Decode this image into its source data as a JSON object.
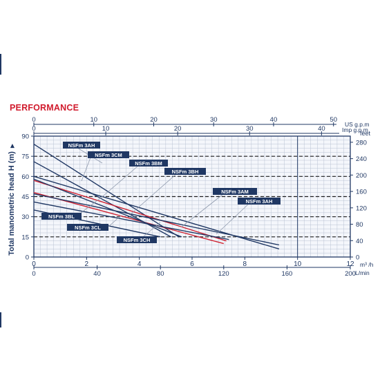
{
  "title": "PERFORMANCE",
  "colors": {
    "navy": "#1f3763",
    "red": "#cf2433",
    "label_bg": "#1f3763",
    "label_text": "#ffffff",
    "grid": "#b9c2d3",
    "plot_bg": "#f4f6fb"
  },
  "chart_data": {
    "type": "line",
    "title": "PERFORMANCE",
    "ylabel": "Total manometric head H (m)",
    "ylabel_arrow": "▲",
    "grid": true,
    "axes": {
      "x_bottom": {
        "label": "m³ /h",
        "range": [
          0,
          12
        ],
        "ticks": [
          "0",
          "2",
          "4",
          "6",
          "8",
          "10",
          "12"
        ]
      },
      "x_lpm": {
        "label": "L/min",
        "range": [
          0,
          200
        ],
        "ticks": [
          "0",
          "40",
          "80",
          "120",
          "160",
          "200"
        ]
      },
      "x_imp": {
        "label": "Imp g.p.m",
        "range": [
          0,
          44
        ],
        "ticks": [
          "0",
          "10",
          "20",
          "30",
          "40"
        ]
      },
      "x_us": {
        "label": "US g.p.m",
        "range": [
          0,
          52.8
        ],
        "ticks": [
          "0",
          "10",
          "20",
          "30",
          "40",
          "50"
        ]
      },
      "y_left": {
        "label": "Total manometric head H (m)",
        "range": [
          0,
          90
        ],
        "ticks": [
          "0",
          "15",
          "30",
          "45",
          "60",
          "75",
          "90"
        ]
      },
      "y_right": {
        "label": "feet",
        "range": [
          0,
          295
        ],
        "ticks": [
          "0",
          "40",
          "80",
          "120",
          "160",
          "200",
          "240",
          "280"
        ]
      }
    },
    "series": [
      {
        "name": "NSFm 3AH",
        "color": "navy",
        "x": [
          0,
          5.5
        ],
        "y": [
          84,
          15
        ]
      },
      {
        "name": "NSFm 3CM",
        "color": "navy",
        "x": [
          0,
          5.2
        ],
        "y": [
          71,
          15
        ]
      },
      {
        "name": "NSFm 3BM",
        "color": "red",
        "x": [
          0,
          7.3
        ],
        "y": [
          57,
          12
        ]
      },
      {
        "name": "NSFm 3BH",
        "color": "red",
        "x": [
          0,
          7.2
        ],
        "y": [
          48,
          10
        ]
      },
      {
        "name": "NSFm 3AM",
        "color": "navy",
        "x": [
          0,
          9.3
        ],
        "y": [
          60,
          6
        ]
      },
      {
        "name": "NSFm 3AH",
        "color": "navy",
        "x": [
          0,
          9.3
        ],
        "y": [
          47,
          9
        ]
      },
      {
        "name": "NSFm 3BL",
        "color": "navy",
        "x": [
          0,
          7.4
        ],
        "y": [
          41,
          13
        ]
      },
      {
        "name": "NSFm 3CL",
        "color": "navy",
        "x": [
          0,
          4.8
        ],
        "y": [
          35,
          15
        ]
      },
      {
        "name": "NSFm 3CH",
        "color": "navy",
        "x": [
          0,
          5.6
        ],
        "y": [
          58,
          15
        ]
      }
    ]
  }
}
